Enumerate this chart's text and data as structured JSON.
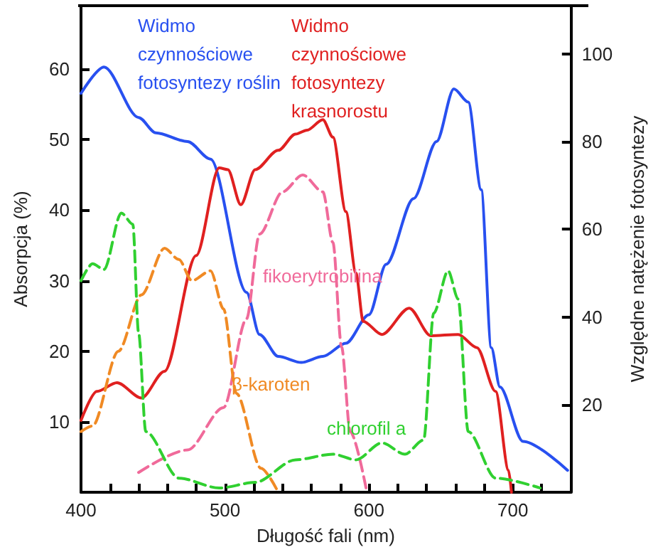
{
  "chart_data": {
    "type": "line",
    "xlabel": "Długość fali (nm)",
    "ylabel": "Absorpcja (%)",
    "y2label": "Względne natężenie fotosyntezy",
    "xlim": [
      400,
      740
    ],
    "xticks": [
      400,
      {
        "value": 420,
        "label": null
      },
      {
        "value": 440,
        "label": null
      },
      {
        "value": 460,
        "label": null
      },
      {
        "value": 480,
        "label": null
      },
      500,
      {
        "value": 520,
        "label": null
      },
      {
        "value": 540,
        "label": null
      },
      {
        "value": 560,
        "label": null
      },
      {
        "value": 580,
        "label": null
      },
      600,
      {
        "value": 620,
        "label": null
      },
      {
        "value": 640,
        "label": null
      },
      {
        "value": 660,
        "label": null
      },
      {
        "value": 680,
        "label": null
      },
      700,
      {
        "value": 720,
        "label": null
      }
    ],
    "ylim": [
      0,
      69
    ],
    "yticks": [
      10,
      20,
      30,
      40,
      50,
      60
    ],
    "y2lim": [
      0,
      111
    ],
    "y2ticks": [
      20,
      40,
      60,
      80,
      100
    ],
    "grid": false,
    "legend": false,
    "marker": "none",
    "series": [
      {
        "name": "Widmo czynnościowe fotosyntezy roślin",
        "color": "#2850f0",
        "axis": "y2",
        "line_style": "solid",
        "x": [
          400,
          416,
          440,
          452,
          474,
          490,
          515,
          524,
          537,
          553,
          568,
          584,
          600,
          612,
          631,
          647,
          659,
          669,
          678,
          685,
          691,
          707,
          738
        ],
        "values": [
          91,
          97,
          85.5,
          82,
          80,
          76,
          45.6,
          36,
          31,
          29.6,
          31,
          34,
          40.5,
          52,
          67,
          80,
          92,
          89,
          69,
          33,
          24,
          11.6,
          5
        ]
      },
      {
        "name": "Widmo czynnościowe fotosyntezy krasnorostu",
        "color": "#e02020",
        "axis": "y2",
        "line_style": "solid",
        "x": [
          400,
          411,
          425,
          442,
          458,
          480,
          496,
          502,
          511,
          521,
          537,
          549,
          557,
          568,
          575,
          584,
          591,
          596,
          609,
          628,
          643,
          662,
          675,
          688,
          697,
          699
        ],
        "values": [
          16.4,
          23,
          25,
          21.5,
          27.6,
          54,
          74,
          73.6,
          65.6,
          73.6,
          78,
          81.7,
          82.6,
          85,
          81,
          64,
          50,
          39,
          36,
          42,
          35.7,
          36,
          33,
          23,
          5,
          0
        ]
      },
      {
        "name": "fikoerytrobilina",
        "color": "#f06a9a",
        "axis": "y",
        "line_style": "dashed",
        "x": [
          440,
          474,
          499,
          515,
          524,
          540,
          554,
          568,
          575,
          581,
          587,
          598
        ],
        "values": [
          2.8,
          6,
          12,
          24.6,
          36.6,
          42.6,
          45,
          42.6,
          35.4,
          20.6,
          8.6,
          0.6
        ]
      },
      {
        "name": "β-karoten",
        "color": "#f08a24",
        "axis": "y",
        "line_style": "dashed",
        "x": [
          400,
          408,
          426,
          442,
          458,
          468,
          477,
          490,
          499,
          508,
          525,
          537
        ],
        "values": [
          8.6,
          9.4,
          20,
          28,
          34.6,
          33,
          30,
          31.4,
          26,
          14,
          3.4,
          0
        ]
      },
      {
        "name": "chlorofil a",
        "color": "#30d030",
        "axis": "y",
        "line_style": "dashed",
        "x": [
          400,
          408,
          416,
          428,
          436,
          440,
          445,
          468,
          496,
          521,
          549,
          575,
          591,
          609,
          625,
          638,
          645,
          655,
          662,
          669,
          688,
          719
        ],
        "values": [
          30,
          32.4,
          31.6,
          39.6,
          38,
          22.6,
          8.6,
          2,
          0.6,
          1.4,
          4.6,
          5.4,
          4.6,
          7,
          5.4,
          7.4,
          25.4,
          31.4,
          27.4,
          8.6,
          2,
          0.6
        ]
      }
    ]
  }
}
